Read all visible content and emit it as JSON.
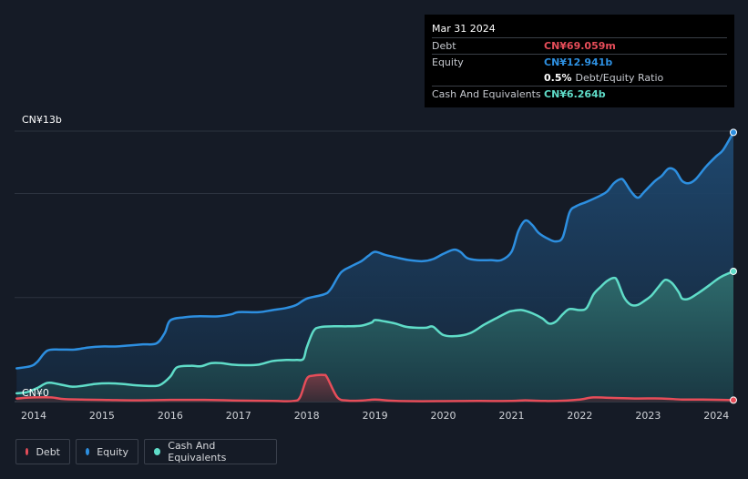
{
  "tooltip": {
    "date": "Mar 31 2024",
    "rows": [
      {
        "label": "Debt",
        "value": "CN¥69.059m",
        "color": "#e64d59"
      },
      {
        "label": "Equity",
        "value": "CN¥12.941b",
        "color": "#2d8fe0"
      },
      {
        "label": "",
        "value": "0.5%",
        "suffix": "Debt/Equity Ratio",
        "color": "#ffffff"
      },
      {
        "label": "Cash And Equivalents",
        "value": "CN¥6.264b",
        "color": "#5fdcc8"
      }
    ]
  },
  "legend": [
    {
      "label": "Debt",
      "color": "#e64d59"
    },
    {
      "label": "Equity",
      "color": "#2d8fe0"
    },
    {
      "label": "Cash And Equivalents",
      "color": "#5fdcc8"
    }
  ],
  "chart_data": {
    "type": "area",
    "title": "",
    "xlabel": "",
    "ylabel": "",
    "y_tick_labels": [
      "CN¥13b",
      "CN¥0"
    ],
    "ylim": [
      0,
      13
    ],
    "xlim": [
      2013.72,
      2024.25
    ],
    "x_ticks": [
      2014,
      2015,
      2016,
      2017,
      2018,
      2019,
      2020,
      2021,
      2022,
      2023,
      2024
    ],
    "x_tick_labels": [
      "2014",
      "2015",
      "2016",
      "2017",
      "2018",
      "2019",
      "2020",
      "2021",
      "2022",
      "2023",
      "2024"
    ],
    "gridlines": [
      0,
      5,
      10,
      13
    ],
    "series": [
      {
        "name": "Equity",
        "color": "#2d8fe0",
        "points": [
          [
            2013.75,
            1.6
          ],
          [
            2013.95,
            1.7
          ],
          [
            2014.05,
            1.9
          ],
          [
            2014.2,
            2.45
          ],
          [
            2014.4,
            2.5
          ],
          [
            2014.6,
            2.5
          ],
          [
            2014.8,
            2.6
          ],
          [
            2015.0,
            2.65
          ],
          [
            2015.2,
            2.65
          ],
          [
            2015.4,
            2.7
          ],
          [
            2015.6,
            2.75
          ],
          [
            2015.8,
            2.8
          ],
          [
            2015.92,
            3.3
          ],
          [
            2016.0,
            3.9
          ],
          [
            2016.2,
            4.05
          ],
          [
            2016.4,
            4.1
          ],
          [
            2016.7,
            4.1
          ],
          [
            2016.9,
            4.2
          ],
          [
            2017.0,
            4.3
          ],
          [
            2017.3,
            4.3
          ],
          [
            2017.5,
            4.4
          ],
          [
            2017.7,
            4.5
          ],
          [
            2017.85,
            4.65
          ],
          [
            2018.0,
            4.95
          ],
          [
            2018.25,
            5.15
          ],
          [
            2018.35,
            5.4
          ],
          [
            2018.5,
            6.2
          ],
          [
            2018.65,
            6.5
          ],
          [
            2018.8,
            6.75
          ],
          [
            2018.9,
            7.0
          ],
          [
            2019.0,
            7.2
          ],
          [
            2019.15,
            7.05
          ],
          [
            2019.35,
            6.9
          ],
          [
            2019.5,
            6.8
          ],
          [
            2019.7,
            6.75
          ],
          [
            2019.85,
            6.85
          ],
          [
            2020.0,
            7.1
          ],
          [
            2020.15,
            7.3
          ],
          [
            2020.25,
            7.2
          ],
          [
            2020.35,
            6.9
          ],
          [
            2020.5,
            6.8
          ],
          [
            2020.7,
            6.8
          ],
          [
            2020.85,
            6.8
          ],
          [
            2021.0,
            7.2
          ],
          [
            2021.1,
            8.2
          ],
          [
            2021.2,
            8.7
          ],
          [
            2021.3,
            8.5
          ],
          [
            2021.4,
            8.1
          ],
          [
            2021.55,
            7.8
          ],
          [
            2021.65,
            7.7
          ],
          [
            2021.75,
            7.9
          ],
          [
            2021.85,
            9.1
          ],
          [
            2021.95,
            9.4
          ],
          [
            2022.1,
            9.6
          ],
          [
            2022.3,
            9.9
          ],
          [
            2022.4,
            10.1
          ],
          [
            2022.5,
            10.5
          ],
          [
            2022.6,
            10.7
          ],
          [
            2022.65,
            10.6
          ],
          [
            2022.75,
            10.1
          ],
          [
            2022.85,
            9.8
          ],
          [
            2022.95,
            10.1
          ],
          [
            2023.1,
            10.6
          ],
          [
            2023.2,
            10.85
          ],
          [
            2023.3,
            11.2
          ],
          [
            2023.4,
            11.1
          ],
          [
            2023.5,
            10.6
          ],
          [
            2023.6,
            10.5
          ],
          [
            2023.7,
            10.7
          ],
          [
            2023.85,
            11.3
          ],
          [
            2024.0,
            11.8
          ],
          [
            2024.1,
            12.1
          ],
          [
            2024.25,
            12.94
          ]
        ]
      },
      {
        "name": "Cash And Equivalents",
        "color": "#5fdcc8",
        "points": [
          [
            2013.75,
            0.4
          ],
          [
            2013.9,
            0.45
          ],
          [
            2014.05,
            0.65
          ],
          [
            2014.2,
            0.9
          ],
          [
            2014.35,
            0.85
          ],
          [
            2014.55,
            0.72
          ],
          [
            2014.7,
            0.75
          ],
          [
            2014.9,
            0.85
          ],
          [
            2015.1,
            0.88
          ],
          [
            2015.3,
            0.85
          ],
          [
            2015.5,
            0.78
          ],
          [
            2015.7,
            0.75
          ],
          [
            2015.85,
            0.8
          ],
          [
            2016.0,
            1.2
          ],
          [
            2016.1,
            1.65
          ],
          [
            2016.3,
            1.72
          ],
          [
            2016.45,
            1.7
          ],
          [
            2016.6,
            1.85
          ],
          [
            2016.75,
            1.85
          ],
          [
            2016.9,
            1.78
          ],
          [
            2017.1,
            1.75
          ],
          [
            2017.3,
            1.78
          ],
          [
            2017.5,
            1.95
          ],
          [
            2017.7,
            2.0
          ],
          [
            2017.85,
            2.0
          ],
          [
            2017.95,
            2.05
          ],
          [
            2018.0,
            2.6
          ],
          [
            2018.1,
            3.4
          ],
          [
            2018.2,
            3.58
          ],
          [
            2018.4,
            3.62
          ],
          [
            2018.6,
            3.62
          ],
          [
            2018.8,
            3.65
          ],
          [
            2018.95,
            3.8
          ],
          [
            2019.0,
            3.92
          ],
          [
            2019.15,
            3.85
          ],
          [
            2019.3,
            3.75
          ],
          [
            2019.45,
            3.6
          ],
          [
            2019.6,
            3.55
          ],
          [
            2019.75,
            3.55
          ],
          [
            2019.85,
            3.6
          ],
          [
            2020.0,
            3.2
          ],
          [
            2020.2,
            3.15
          ],
          [
            2020.4,
            3.3
          ],
          [
            2020.6,
            3.7
          ],
          [
            2020.8,
            4.05
          ],
          [
            2020.95,
            4.3
          ],
          [
            2021.0,
            4.35
          ],
          [
            2021.15,
            4.4
          ],
          [
            2021.3,
            4.25
          ],
          [
            2021.45,
            4.0
          ],
          [
            2021.55,
            3.75
          ],
          [
            2021.65,
            3.85
          ],
          [
            2021.75,
            4.2
          ],
          [
            2021.85,
            4.45
          ],
          [
            2022.0,
            4.4
          ],
          [
            2022.1,
            4.5
          ],
          [
            2022.2,
            5.15
          ],
          [
            2022.3,
            5.5
          ],
          [
            2022.4,
            5.8
          ],
          [
            2022.5,
            5.95
          ],
          [
            2022.55,
            5.8
          ],
          [
            2022.65,
            5.0
          ],
          [
            2022.75,
            4.65
          ],
          [
            2022.85,
            4.65
          ],
          [
            2022.95,
            4.85
          ],
          [
            2023.05,
            5.1
          ],
          [
            2023.15,
            5.5
          ],
          [
            2023.25,
            5.85
          ],
          [
            2023.35,
            5.7
          ],
          [
            2023.45,
            5.25
          ],
          [
            2023.5,
            4.95
          ],
          [
            2023.6,
            4.95
          ],
          [
            2023.75,
            5.25
          ],
          [
            2023.9,
            5.6
          ],
          [
            2024.0,
            5.85
          ],
          [
            2024.1,
            6.05
          ],
          [
            2024.25,
            6.26
          ]
        ]
      },
      {
        "name": "Debt",
        "color": "#e64d59",
        "points": [
          [
            2013.75,
            0.15
          ],
          [
            2014.0,
            0.2
          ],
          [
            2014.25,
            0.2
          ],
          [
            2014.45,
            0.12
          ],
          [
            2014.7,
            0.1
          ],
          [
            2015.0,
            0.08
          ],
          [
            2015.5,
            0.06
          ],
          [
            2016.0,
            0.08
          ],
          [
            2016.5,
            0.08
          ],
          [
            2017.0,
            0.05
          ],
          [
            2017.5,
            0.03
          ],
          [
            2017.8,
            0.03
          ],
          [
            2017.9,
            0.2
          ],
          [
            2018.0,
            1.1
          ],
          [
            2018.1,
            1.25
          ],
          [
            2018.25,
            1.28
          ],
          [
            2018.3,
            1.15
          ],
          [
            2018.45,
            0.2
          ],
          [
            2018.6,
            0.05
          ],
          [
            2018.8,
            0.05
          ],
          [
            2019.0,
            0.1
          ],
          [
            2019.2,
            0.05
          ],
          [
            2019.5,
            0.02
          ],
          [
            2020.0,
            0.02
          ],
          [
            2020.5,
            0.03
          ],
          [
            2021.0,
            0.03
          ],
          [
            2021.2,
            0.06
          ],
          [
            2021.5,
            0.03
          ],
          [
            2021.8,
            0.05
          ],
          [
            2022.0,
            0.1
          ],
          [
            2022.2,
            0.2
          ],
          [
            2022.45,
            0.18
          ],
          [
            2022.8,
            0.15
          ],
          [
            2023.2,
            0.15
          ],
          [
            2023.5,
            0.1
          ],
          [
            2023.8,
            0.1
          ],
          [
            2024.25,
            0.07
          ]
        ]
      }
    ]
  }
}
